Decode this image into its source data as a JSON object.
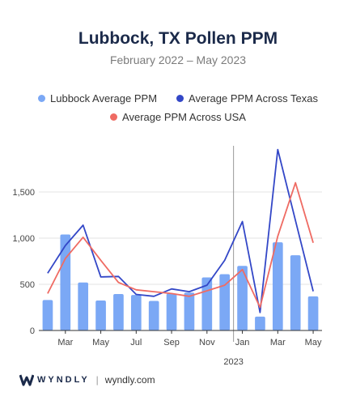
{
  "title": "Lubbock, TX Pollen PPM",
  "subtitle": "February 2022 – May 2023",
  "footer": {
    "brand": "WYNDLY",
    "separator": "|",
    "url": "wyndly.com"
  },
  "colors": {
    "bars": "#7ba8f5",
    "texas": "#3347c7",
    "usa": "#ef6b63"
  },
  "chart_data": {
    "type": "bar",
    "title": "Lubbock, TX Pollen PPM",
    "subtitle": "February 2022 – May 2023",
    "x": [
      "Feb 2022",
      "Mar 2022",
      "Apr 2022",
      "May 2022",
      "Jun 2022",
      "Jul 2022",
      "Aug 2022",
      "Sep 2022",
      "Oct 2022",
      "Nov 2022",
      "Dec 2022",
      "Jan 2023",
      "Feb 2023",
      "Mar 2023",
      "Apr 2023",
      "May 2023"
    ],
    "x_tick_labels": [
      "Mar",
      "May",
      "Jul",
      "Sep",
      "Nov",
      "Jan",
      "Mar",
      "May"
    ],
    "x_tick_indices": [
      1,
      3,
      5,
      7,
      9,
      11,
      13,
      15
    ],
    "year_marker": {
      "label": "2023",
      "index": 11
    },
    "y_ticks": [
      0,
      500,
      1000,
      1500
    ],
    "y_tick_labels": [
      "0",
      "500",
      "1,000",
      "1,500"
    ],
    "ylim": [
      0,
      2000
    ],
    "grid": true,
    "legend_position": "top",
    "series": [
      {
        "name": "Lubbock Average PPM",
        "kind": "bar",
        "color": "#7ba8f5",
        "values": [
          330,
          1040,
          520,
          325,
          395,
          385,
          320,
          400,
          410,
          575,
          610,
          700,
          150,
          955,
          815,
          370
        ]
      },
      {
        "name": "Average PPM Across Texas",
        "kind": "line",
        "color": "#3347c7",
        "values": [
          620,
          920,
          1140,
          580,
          585,
          390,
          370,
          450,
          420,
          490,
          760,
          1180,
          195,
          1960,
          1190,
          425
        ]
      },
      {
        "name": "Average PPM Across USA",
        "kind": "line",
        "color": "#ef6b63",
        "values": [
          400,
          780,
          1010,
          760,
          520,
          440,
          420,
          400,
          370,
          430,
          490,
          660,
          250,
          1020,
          1600,
          950
        ]
      }
    ]
  }
}
